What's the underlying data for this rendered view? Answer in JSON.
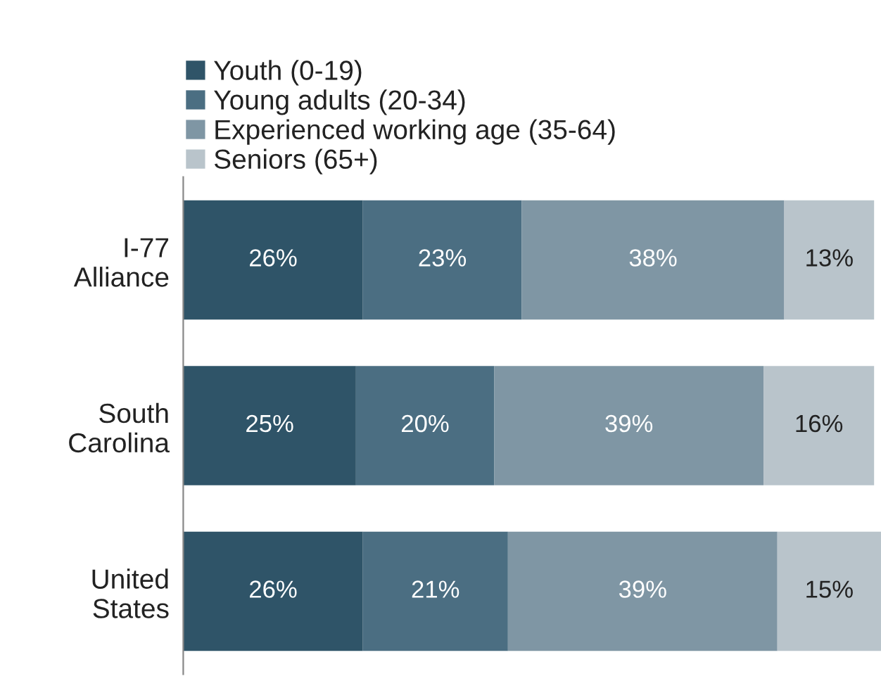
{
  "chart_data": {
    "type": "bar",
    "orientation": "horizontal",
    "stacked": true,
    "categories": [
      "I-77\nAlliance",
      "South\nCarolina",
      "United\nStates"
    ],
    "series": [
      {
        "name": "Youth (0-19)",
        "color": "#2f5468",
        "values": [
          26,
          25,
          26
        ],
        "value_labels": [
          "26%",
          "25%",
          "26%"
        ]
      },
      {
        "name": "Young adults (20-34)",
        "color": "#4b6e82",
        "values": [
          23,
          20,
          21
        ],
        "value_labels": [
          "23%",
          "20%",
          "21%"
        ]
      },
      {
        "name": "Experienced working age (35-64)",
        "color": "#7f96a4",
        "values": [
          38,
          39,
          39
        ],
        "value_labels": [
          "38%",
          "39%",
          "39%"
        ]
      },
      {
        "name": "Seniors (65+)",
        "color": "#b9c4cb",
        "values": [
          13,
          16,
          15
        ],
        "value_labels": [
          "13%",
          "16%",
          "15%"
        ]
      }
    ],
    "xlim": [
      0,
      101
    ],
    "tick_labels": "y",
    "legend": "top left",
    "grid": false
  }
}
